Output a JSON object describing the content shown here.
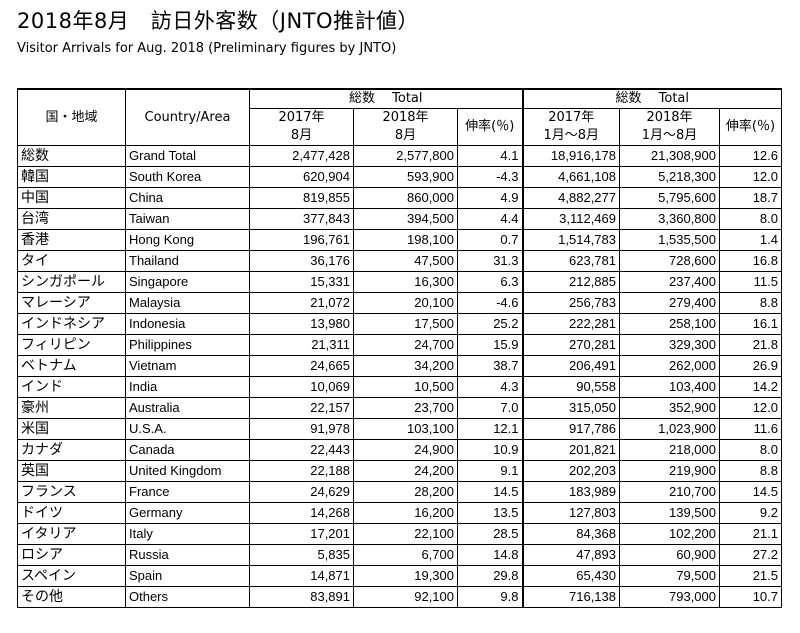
{
  "page": {
    "title": "2018年8月　訪日外客数（JNTO推計値）",
    "subtitle": "Visitor Arrivals for Aug. 2018 (Preliminary figures by JNTO)"
  },
  "table": {
    "header": {
      "country_jp": "国・地域",
      "country_en": "Country/Area",
      "group_month": "総数　 Total",
      "group_ytd": "総数　 Total",
      "col_2017_line1": "2017年",
      "col_2017_line2": "8月",
      "col_2018_line1": "2018年",
      "col_2018_line2": "8月",
      "growth": "伸率(％)",
      "col_ytd2017_line1": "2017年",
      "col_ytd2017_line2": "1月～8月",
      "col_ytd2018_line1": "2018年",
      "col_ytd2018_line2": "1月～8月",
      "growth_ytd": "伸率(％)"
    },
    "rows": [
      {
        "jp": "総数",
        "en": "Grand Total",
        "m2017": "2,477,428",
        "m2018": "2,577,800",
        "g": "4.1",
        "y2017": "18,916,178",
        "y2018": "21,308,900",
        "gy": "12.6"
      },
      {
        "jp": "韓国",
        "en": "South Korea",
        "m2017": "620,904",
        "m2018": "593,900",
        "g": "-4.3",
        "y2017": "4,661,108",
        "y2018": "5,218,300",
        "gy": "12.0"
      },
      {
        "jp": "中国",
        "en": "China",
        "m2017": "819,855",
        "m2018": "860,000",
        "g": "4.9",
        "y2017": "4,882,277",
        "y2018": "5,795,600",
        "gy": "18.7"
      },
      {
        "jp": "台湾",
        "en": "Taiwan",
        "m2017": "377,843",
        "m2018": "394,500",
        "g": "4.4",
        "y2017": "3,112,469",
        "y2018": "3,360,800",
        "gy": "8.0"
      },
      {
        "jp": "香港",
        "en": "Hong Kong",
        "m2017": "196,761",
        "m2018": "198,100",
        "g": "0.7",
        "y2017": "1,514,783",
        "y2018": "1,535,500",
        "gy": "1.4"
      },
      {
        "jp": "タイ",
        "en": "Thailand",
        "m2017": "36,176",
        "m2018": "47,500",
        "g": "31.3",
        "y2017": "623,781",
        "y2018": "728,600",
        "gy": "16.8"
      },
      {
        "jp": "シンガポール",
        "en": "Singapore",
        "m2017": "15,331",
        "m2018": "16,300",
        "g": "6.3",
        "y2017": "212,885",
        "y2018": "237,400",
        "gy": "11.5"
      },
      {
        "jp": "マレーシア",
        "en": "Malaysia",
        "m2017": "21,072",
        "m2018": "20,100",
        "g": "-4.6",
        "y2017": "256,783",
        "y2018": "279,400",
        "gy": "8.8"
      },
      {
        "jp": "インドネシア",
        "en": "Indonesia",
        "m2017": "13,980",
        "m2018": "17,500",
        "g": "25.2",
        "y2017": "222,281",
        "y2018": "258,100",
        "gy": "16.1"
      },
      {
        "jp": "フィリピン",
        "en": "Philippines",
        "m2017": "21,311",
        "m2018": "24,700",
        "g": "15.9",
        "y2017": "270,281",
        "y2018": "329,300",
        "gy": "21.8"
      },
      {
        "jp": "ベトナム",
        "en": "Vietnam",
        "m2017": "24,665",
        "m2018": "34,200",
        "g": "38.7",
        "y2017": "206,491",
        "y2018": "262,000",
        "gy": "26.9"
      },
      {
        "jp": "インド",
        "en": "India",
        "m2017": "10,069",
        "m2018": "10,500",
        "g": "4.3",
        "y2017": "90,558",
        "y2018": "103,400",
        "gy": "14.2"
      },
      {
        "jp": "豪州",
        "en": "Australia",
        "m2017": "22,157",
        "m2018": "23,700",
        "g": "7.0",
        "y2017": "315,050",
        "y2018": "352,900",
        "gy": "12.0"
      },
      {
        "jp": "米国",
        "en": "U.S.A.",
        "m2017": "91,978",
        "m2018": "103,100",
        "g": "12.1",
        "y2017": "917,786",
        "y2018": "1,023,900",
        "gy": "11.6"
      },
      {
        "jp": "カナダ",
        "en": "Canada",
        "m2017": "22,443",
        "m2018": "24,900",
        "g": "10.9",
        "y2017": "201,821",
        "y2018": "218,000",
        "gy": "8.0"
      },
      {
        "jp": "英国",
        "en": "United Kingdom",
        "m2017": "22,188",
        "m2018": "24,200",
        "g": "9.1",
        "y2017": "202,203",
        "y2018": "219,900",
        "gy": "8.8"
      },
      {
        "jp": "フランス",
        "en": "France",
        "m2017": "24,629",
        "m2018": "28,200",
        "g": "14.5",
        "y2017": "183,989",
        "y2018": "210,700",
        "gy": "14.5"
      },
      {
        "jp": "ドイツ",
        "en": "Germany",
        "m2017": "14,268",
        "m2018": "16,200",
        "g": "13.5",
        "y2017": "127,803",
        "y2018": "139,500",
        "gy": "9.2"
      },
      {
        "jp": "イタリア",
        "en": "Italy",
        "m2017": "17,201",
        "m2018": "22,100",
        "g": "28.5",
        "y2017": "84,368",
        "y2018": "102,200",
        "gy": "21.1"
      },
      {
        "jp": "ロシア",
        "en": "Russia",
        "m2017": "5,835",
        "m2018": "6,700",
        "g": "14.8",
        "y2017": "47,893",
        "y2018": "60,900",
        "gy": "27.2"
      },
      {
        "jp": "スペイン",
        "en": "Spain",
        "m2017": "14,871",
        "m2018": "19,300",
        "g": "29.8",
        "y2017": "65,430",
        "y2018": "79,500",
        "gy": "21.5"
      },
      {
        "jp": "その他",
        "en": "Others",
        "m2017": "83,891",
        "m2018": "92,100",
        "g": "9.8",
        "y2017": "716,138",
        "y2018": "793,000",
        "gy": "10.7"
      }
    ]
  }
}
